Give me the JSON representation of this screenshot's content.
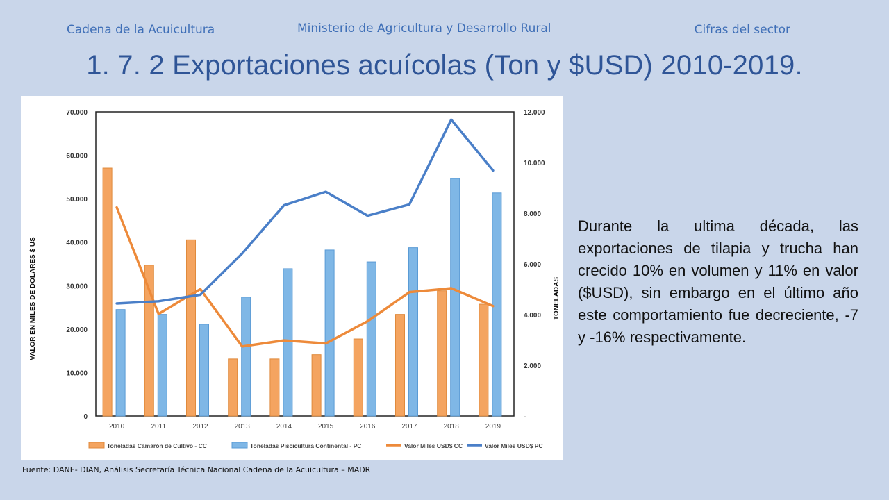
{
  "header": {
    "left": "Cadena de la Acuicultura",
    "center": "Ministerio de Agricultura y Desarrollo Rural",
    "right": "Cifras del sector"
  },
  "title": "1. 7. 2 Exportaciones acuícolas (Ton y $USD) 2010-2019.",
  "body_text": "Durante la ultima década, las exportaciones de tilapia y trucha han crecido 10% en volumen y 11% en valor ($USD), sin embargo en el último año este comportamiento fue decreciente, -7 y -16% respectivamente.",
  "source": "Fuente: DANE- DIAN, Análisis Secretaría Técnica Nacional Cadena de la Acuicultura – MADR",
  "colors": {
    "orange_bar": "#f4a460",
    "blue_bar": "#7fb7e6",
    "orange_line": "#ed8a3a",
    "blue_line": "#4a7fc8"
  },
  "chart_data": {
    "type": "bar+line",
    "categories": [
      "2010",
      "2011",
      "2012",
      "2013",
      "2014",
      "2015",
      "2016",
      "2017",
      "2018",
      "2019"
    ],
    "ylabel_left": "VALOR EN MILES DE  DOLARES $ US",
    "ylabel_right": "TONELADAS",
    "ylim_left": [
      0,
      70000
    ],
    "ylim_right": [
      0,
      12000
    ],
    "yticks_left": [
      "0",
      "10.000",
      "20.000",
      "30.000",
      "40.000",
      "50.000",
      "60.000",
      "70.000"
    ],
    "yticks_right": [
      "-",
      "2.000",
      "4.000",
      "6.000",
      "8.000",
      "10.000",
      "12.000"
    ],
    "legend_position": "bottom",
    "series": [
      {
        "name": "Toneladas Camarón de Cultivo - CC",
        "kind": "bar",
        "axis": "right",
        "values": [
          9780,
          5950,
          6950,
          2250,
          2250,
          2420,
          3040,
          4010,
          4940,
          4410
        ]
      },
      {
        "name": "Toneladas Piscicultura Continental - PC",
        "kind": "bar",
        "axis": "right",
        "values": [
          4200,
          4010,
          3620,
          4690,
          5810,
          6550,
          6080,
          6640,
          9370,
          8800
        ]
      },
      {
        "name": "Valor Miles USD$ CC",
        "kind": "line",
        "axis": "left",
        "values": [
          48000,
          23500,
          29200,
          16000,
          17400,
          16700,
          21800,
          28500,
          29400,
          25300
        ]
      },
      {
        "name": "Valor Miles USD$ PC",
        "kind": "line",
        "axis": "left",
        "values": [
          25900,
          26400,
          27900,
          37400,
          48500,
          51600,
          46100,
          48700,
          68200,
          56500
        ]
      }
    ]
  }
}
